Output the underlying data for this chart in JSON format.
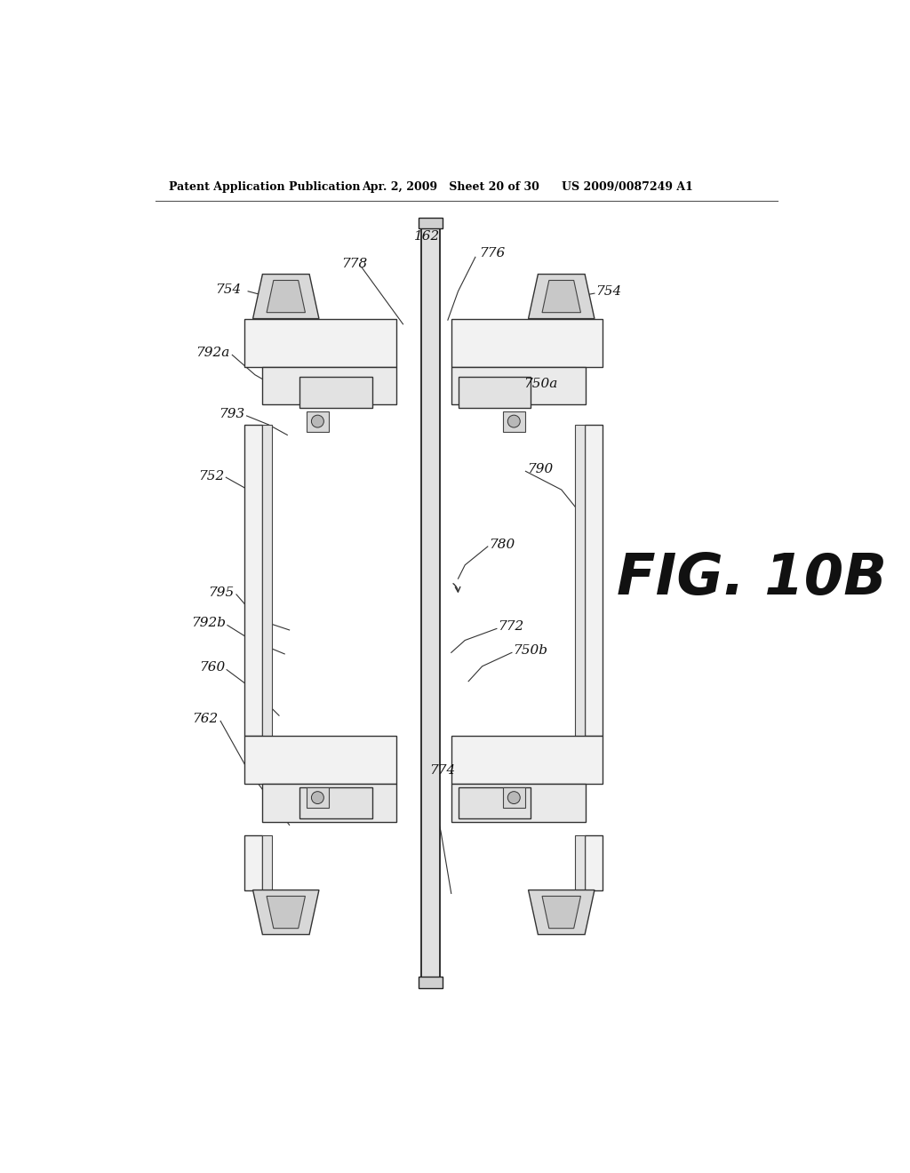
{
  "bg_color": "#ffffff",
  "header_left": "Patent Application Publication",
  "header_mid": "Apr. 2, 2009   Sheet 20 of 30",
  "header_right": "US 2009/0087249 A1",
  "fig_label": "FIG. 10B"
}
